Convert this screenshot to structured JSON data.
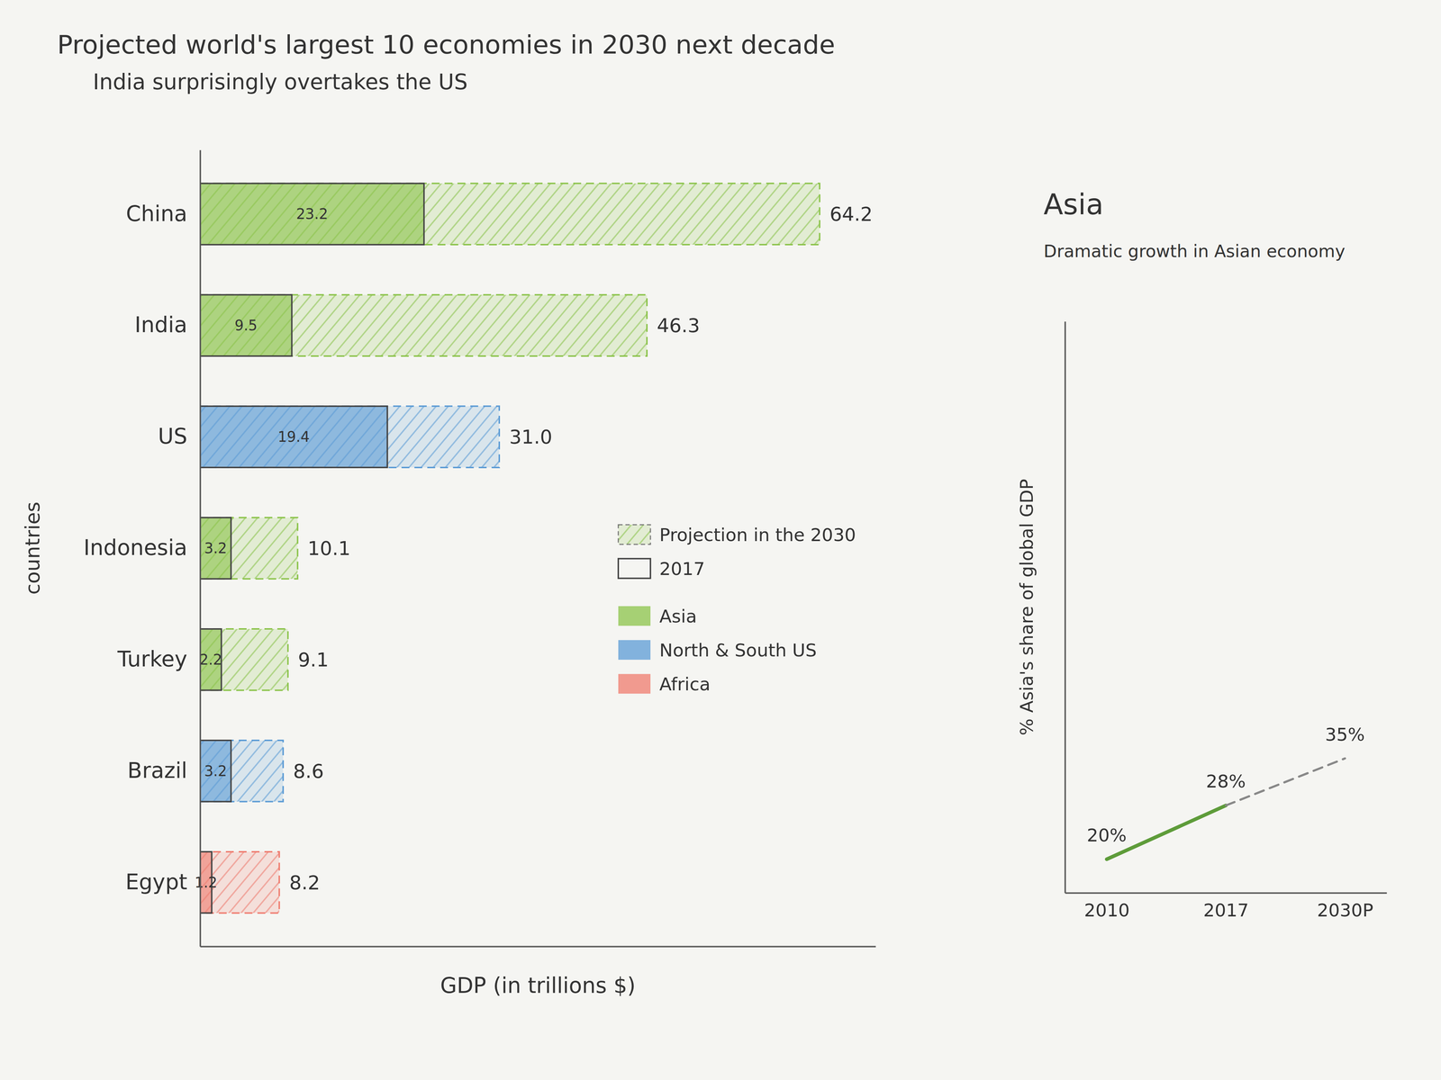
{
  "chart_data": [
    {
      "type": "bar",
      "orientation": "horizontal",
      "title": "Projected world's largest 10 economies in 2030 next decade",
      "subtitle": "India surprisingly overtakes the US",
      "x_label": "GDP (in trillions $)",
      "y_label": "countries",
      "categories": [
        "China",
        "India",
        "US",
        "Indonesia",
        "Turkey",
        "Brazil",
        "Egypt"
      ],
      "colors": [
        "#8bc34a",
        "#8bc34a",
        "#5b9bd5",
        "#8bc34a",
        "#8bc34a",
        "#5b9bd5",
        "#ef7b6e"
      ],
      "series": [
        {
          "name": "Projection in the 2030",
          "line_style": "dashed",
          "values": [
            64.2,
            46.3,
            31.0,
            10.1,
            9.1,
            8.6,
            8.2
          ],
          "value_labels": [
            "64.2",
            "46.3",
            "31.0",
            "10.1",
            "9.1",
            "8.6",
            "8.2"
          ]
        },
        {
          "name": "2017",
          "line_style": "solid",
          "values": [
            23.2,
            9.5,
            19.4,
            3.2,
            2.2,
            3.2,
            1.2
          ]
        }
      ],
      "region_legend": [
        {
          "name": "Asia",
          "color": "#8bc34a"
        },
        {
          "name": "North & South US",
          "color": "#5b9bd5"
        },
        {
          "name": "Africa",
          "color": "#ef7b6e"
        }
      ],
      "xlim": [
        0,
        70
      ],
      "tick_labels": "y",
      "data_labels": true,
      "legend": "lower right"
    },
    {
      "type": "line",
      "title": "Asia",
      "subtitle": "Dramatic growth in Asian economy",
      "y_label": "% Asia's share of global GDP",
      "categories": [
        "2010",
        "2017",
        "2030P"
      ],
      "series": [
        {
          "color": "#5e9c3a",
          "line_style": "solid",
          "values": [
            20,
            28,
            null
          ],
          "value_labels": [
            "20%",
            "28%",
            null
          ]
        },
        {
          "color": "#888888",
          "line_style": "dashed",
          "values": [
            null,
            28,
            35
          ],
          "value_labels": [
            null,
            null,
            "35%"
          ]
        }
      ],
      "ylim": [
        15,
        100
      ],
      "tick_labels": "x",
      "data_labels": true
    }
  ]
}
